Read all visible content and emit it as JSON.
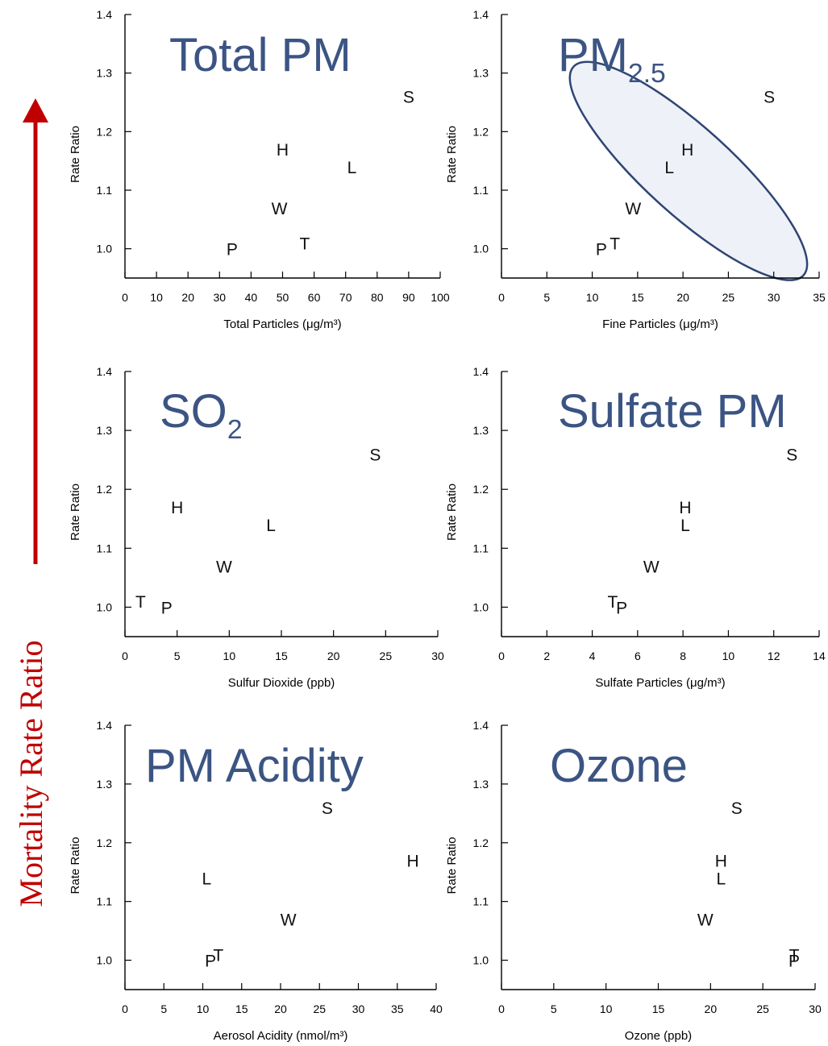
{
  "side_label": "Mortality Rate Ratio",
  "colors": {
    "title": "#3b5483",
    "arrow": "#c00000",
    "axis": "#000000",
    "ellipse_fill": "#eef1f8",
    "ellipse_stroke": "#2e4573"
  },
  "chart_data": [
    {
      "type": "scatter",
      "title": "Total PM",
      "title_sub": "",
      "xlabel": "Total Particles (μg/m³)",
      "ylabel": "Rate Ratio",
      "xlim": [
        0,
        100
      ],
      "ylim": [
        0.95,
        1.4
      ],
      "xticks": [
        0,
        10,
        20,
        30,
        40,
        50,
        60,
        70,
        80,
        90,
        100
      ],
      "yticks": [
        1.0,
        1.1,
        1.2,
        1.3,
        1.4
      ],
      "ytick_labels": [
        "1.0",
        "1.1",
        "1.2",
        "1.3",
        "1.4"
      ],
      "points": [
        {
          "label": "S",
          "x": 90,
          "y": 1.26
        },
        {
          "label": "H",
          "x": 50,
          "y": 1.17
        },
        {
          "label": "L",
          "x": 72,
          "y": 1.14
        },
        {
          "label": "W",
          "x": 49,
          "y": 1.07
        },
        {
          "label": "T",
          "x": 57,
          "y": 1.01
        },
        {
          "label": "P",
          "x": 34,
          "y": 1.0
        }
      ]
    },
    {
      "type": "scatter",
      "title": "PM",
      "title_sub": "2.5",
      "xlabel": "Fine Particles (μg/m³)",
      "ylabel": "Rate Ratio",
      "xlim": [
        0,
        35
      ],
      "ylim": [
        0.95,
        1.4
      ],
      "xticks": [
        0,
        5,
        10,
        15,
        20,
        25,
        30,
        35
      ],
      "yticks": [
        1.0,
        1.1,
        1.2,
        1.3,
        1.4
      ],
      "ytick_labels": [
        "1.0",
        "1.1",
        "1.2",
        "1.3",
        "1.4"
      ],
      "highlight_ellipse": true,
      "points": [
        {
          "label": "S",
          "x": 29.5,
          "y": 1.26
        },
        {
          "label": "H",
          "x": 20.5,
          "y": 1.17
        },
        {
          "label": "L",
          "x": 18.5,
          "y": 1.14
        },
        {
          "label": "W",
          "x": 14.5,
          "y": 1.07
        },
        {
          "label": "P",
          "x": 11,
          "y": 1.0
        },
        {
          "label": "T",
          "x": 12.5,
          "y": 1.01
        }
      ]
    },
    {
      "type": "scatter",
      "title": "SO",
      "title_sub": "2",
      "xlabel": "Sulfur Dioxide (ppb)",
      "ylabel": "Rate Ratio",
      "xlim": [
        0,
        30
      ],
      "ylim": [
        0.95,
        1.4
      ],
      "xticks": [
        0,
        5,
        10,
        15,
        20,
        25,
        30
      ],
      "yticks": [
        1.0,
        1.1,
        1.2,
        1.3,
        1.4
      ],
      "ytick_labels": [
        "1.0",
        "1.1",
        "1.2",
        "1.3",
        "1.4"
      ],
      "points": [
        {
          "label": "S",
          "x": 24,
          "y": 1.26
        },
        {
          "label": "H",
          "x": 5,
          "y": 1.17
        },
        {
          "label": "L",
          "x": 14,
          "y": 1.14
        },
        {
          "label": "W",
          "x": 9.5,
          "y": 1.07
        },
        {
          "label": "T",
          "x": 1.5,
          "y": 1.01
        },
        {
          "label": "P",
          "x": 4,
          "y": 1.0
        }
      ]
    },
    {
      "type": "scatter",
      "title": "Sulfate PM",
      "title_sub": "",
      "xlabel": "Sulfate Particles (μg/m³)",
      "ylabel": "Rate Ratio",
      "xlim": [
        0,
        14
      ],
      "ylim": [
        0.95,
        1.4
      ],
      "xticks": [
        0,
        2,
        4,
        6,
        8,
        10,
        12,
        14
      ],
      "yticks": [
        1.0,
        1.1,
        1.2,
        1.3,
        1.4
      ],
      "ytick_labels": [
        "1.0",
        "1.1",
        "1.2",
        "1.3",
        "1.4"
      ],
      "points": [
        {
          "label": "S",
          "x": 12.8,
          "y": 1.26
        },
        {
          "label": "H",
          "x": 8.1,
          "y": 1.17
        },
        {
          "label": "L",
          "x": 8.1,
          "y": 1.14
        },
        {
          "label": "W",
          "x": 6.6,
          "y": 1.07
        },
        {
          "label": "T",
          "x": 4.9,
          "y": 1.01
        },
        {
          "label": "P",
          "x": 5.3,
          "y": 1.0
        }
      ]
    },
    {
      "type": "scatter",
      "title": "PM Acidity",
      "title_sub": "",
      "xlabel": "Aerosol Acidity (nmol/m³)",
      "ylabel": "Rate Ratio",
      "xlim": [
        0,
        40
      ],
      "ylim": [
        0.95,
        1.4
      ],
      "xticks": [
        0,
        5,
        10,
        15,
        20,
        25,
        30,
        35,
        40
      ],
      "yticks": [
        1.0,
        1.1,
        1.2,
        1.3,
        1.4
      ],
      "ytick_labels": [
        "1.0",
        "1.1",
        "1.2",
        "1.3",
        "1.4"
      ],
      "points": [
        {
          "label": "S",
          "x": 26,
          "y": 1.26
        },
        {
          "label": "H",
          "x": 37,
          "y": 1.17
        },
        {
          "label": "L",
          "x": 10.5,
          "y": 1.14
        },
        {
          "label": "W",
          "x": 21,
          "y": 1.07
        },
        {
          "label": "P",
          "x": 11,
          "y": 1.0
        },
        {
          "label": "T",
          "x": 12,
          "y": 1.01
        }
      ]
    },
    {
      "type": "scatter",
      "title": "Ozone",
      "title_sub": "",
      "xlabel": "Ozone (ppb)",
      "ylabel": "Rate Ratio",
      "xlim": [
        0,
        30
      ],
      "ylim": [
        0.95,
        1.4
      ],
      "xticks": [
        0,
        5,
        10,
        15,
        20,
        25,
        30
      ],
      "yticks": [
        1.0,
        1.1,
        1.2,
        1.3,
        1.4
      ],
      "ytick_labels": [
        "1.0",
        "1.1",
        "1.2",
        "1.3",
        "1.4"
      ],
      "points": [
        {
          "label": "S",
          "x": 22.5,
          "y": 1.26
        },
        {
          "label": "H",
          "x": 21,
          "y": 1.17
        },
        {
          "label": "L",
          "x": 21,
          "y": 1.14
        },
        {
          "label": "W",
          "x": 19.5,
          "y": 1.07
        },
        {
          "label": "T",
          "x": 28,
          "y": 1.01
        },
        {
          "label": "P",
          "x": 28,
          "y": 1.0
        }
      ]
    }
  ]
}
